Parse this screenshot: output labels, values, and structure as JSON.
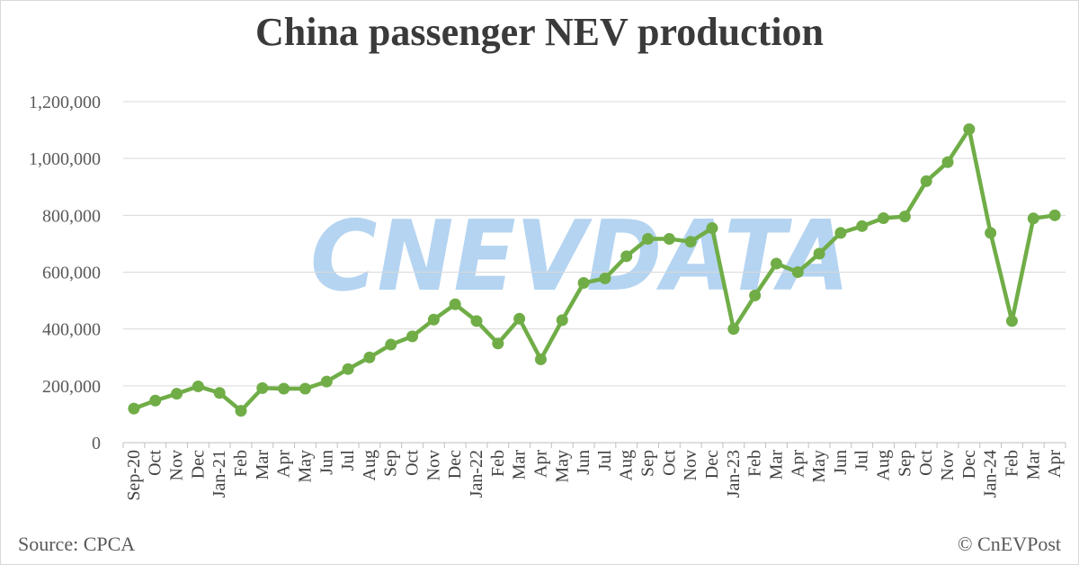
{
  "chart_data": {
    "type": "line",
    "title": "China passenger NEV production",
    "xlabel": "",
    "ylabel": "",
    "ylim": [
      0,
      1200000
    ],
    "y_ticks": [
      0,
      200000,
      400000,
      600000,
      800000,
      1000000,
      1200000
    ],
    "grid": true,
    "legend": "none",
    "categories": [
      "Sep-20",
      "Oct",
      "Nov",
      "Dec",
      "Jan-21",
      "Feb",
      "Mar",
      "Apr",
      "May",
      "Jun",
      "Jul",
      "Aug",
      "Sep",
      "Oct",
      "Nov",
      "Dec",
      "Jan-22",
      "Feb",
      "Mar",
      "Apr",
      "May",
      "Jun",
      "Jul",
      "Aug",
      "Sep",
      "Oct",
      "Nov",
      "Dec",
      "Jan-23",
      "Feb",
      "Mar",
      "Apr",
      "May",
      "Jun",
      "Jul",
      "Aug",
      "Sep",
      "Oct",
      "Nov",
      "Dec",
      "Jan-24",
      "Feb",
      "Mar",
      "Apr"
    ],
    "series": [
      {
        "color": "#70ad47",
        "values": [
          120000,
          148000,
          172000,
          198000,
          175000,
          112000,
          192000,
          190000,
          190000,
          215000,
          259000,
          300000,
          345000,
          374000,
          433000,
          487000,
          428000,
          349000,
          436000,
          293000,
          431000,
          562000,
          578000,
          656000,
          717000,
          717000,
          707000,
          755000,
          400000,
          518000,
          630000,
          600000,
          665000,
          738000,
          762000,
          790000,
          796000,
          920000,
          987000,
          1103000,
          738000,
          428000,
          789000,
          800000
        ]
      }
    ]
  },
  "watermark": "CNEVDATA",
  "footer": {
    "source": "Source: CPCA",
    "credit": "© CnEVPost"
  }
}
